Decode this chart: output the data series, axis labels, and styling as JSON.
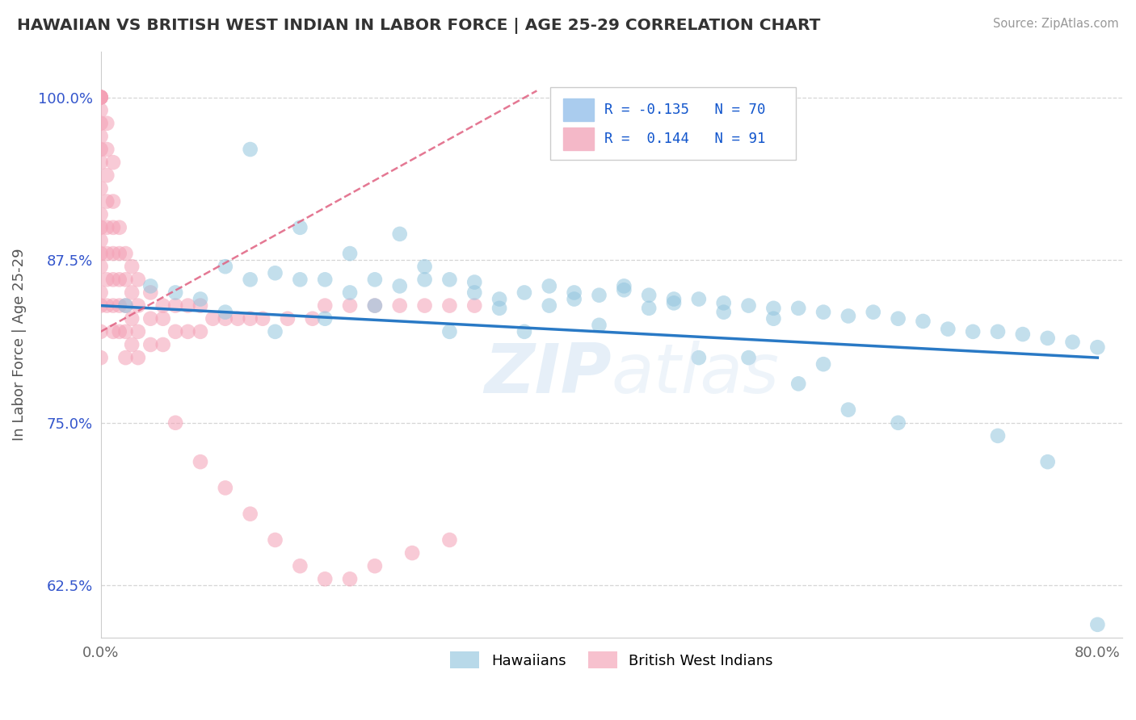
{
  "title": "HAWAIIAN VS BRITISH WEST INDIAN IN LABOR FORCE | AGE 25-29 CORRELATION CHART",
  "source": "Source: ZipAtlas.com",
  "ylabel": "In Labor Force | Age 25-29",
  "xlim": [
    0.0,
    0.82
  ],
  "ylim": [
    0.585,
    1.035
  ],
  "xticks": [
    0.0,
    0.2,
    0.4,
    0.6,
    0.8
  ],
  "xticklabels": [
    "0.0%",
    "",
    "",
    "",
    "80.0%"
  ],
  "yticks": [
    0.625,
    0.75,
    0.875,
    1.0
  ],
  "yticklabels": [
    "62.5%",
    "75.0%",
    "87.5%",
    "100.0%"
  ],
  "hawaiian_R": -0.135,
  "hawaiian_N": 70,
  "bwi_R": 0.144,
  "bwi_N": 91,
  "legend_label_1": "Hawaiians",
  "legend_label_2": "British West Indians",
  "watermark": "ZIPatlas",
  "blue_color": "#92c5de",
  "pink_color": "#f4a0b5",
  "blue_line_color": "#2979c5",
  "pink_line_color": "#e06080",
  "hawaiian_x": [
    0.02,
    0.04,
    0.06,
    0.08,
    0.1,
    0.12,
    0.14,
    0.16,
    0.18,
    0.2,
    0.22,
    0.24,
    0.26,
    0.28,
    0.3,
    0.32,
    0.34,
    0.36,
    0.38,
    0.4,
    0.42,
    0.44,
    0.46,
    0.48,
    0.5,
    0.52,
    0.54,
    0.56,
    0.58,
    0.6,
    0.62,
    0.64,
    0.66,
    0.68,
    0.7,
    0.72,
    0.74,
    0.76,
    0.78,
    0.8,
    0.14,
    0.18,
    0.22,
    0.28,
    0.32,
    0.36,
    0.4,
    0.44,
    0.5,
    0.54,
    0.12,
    0.16,
    0.2,
    0.24,
    0.3,
    0.38,
    0.42,
    0.46,
    0.52,
    0.58,
    0.1,
    0.26,
    0.34,
    0.48,
    0.56,
    0.6,
    0.64,
    0.72,
    0.76,
    0.8
  ],
  "hawaiian_y": [
    0.84,
    0.855,
    0.85,
    0.845,
    0.87,
    0.86,
    0.865,
    0.86,
    0.86,
    0.85,
    0.86,
    0.855,
    0.87,
    0.86,
    0.85,
    0.845,
    0.85,
    0.855,
    0.845,
    0.848,
    0.852,
    0.848,
    0.845,
    0.845,
    0.842,
    0.84,
    0.838,
    0.838,
    0.835,
    0.832,
    0.835,
    0.83,
    0.828,
    0.822,
    0.82,
    0.82,
    0.818,
    0.815,
    0.812,
    0.808,
    0.82,
    0.83,
    0.84,
    0.82,
    0.838,
    0.84,
    0.825,
    0.838,
    0.835,
    0.83,
    0.96,
    0.9,
    0.88,
    0.895,
    0.858,
    0.85,
    0.855,
    0.842,
    0.8,
    0.795,
    0.835,
    0.86,
    0.82,
    0.8,
    0.78,
    0.76,
    0.75,
    0.74,
    0.72,
    0.595
  ],
  "bwi_x": [
    0.0,
    0.0,
    0.0,
    0.0,
    0.0,
    0.0,
    0.0,
    0.0,
    0.0,
    0.0,
    0.0,
    0.0,
    0.0,
    0.0,
    0.0,
    0.0,
    0.0,
    0.0,
    0.0,
    0.0,
    0.005,
    0.005,
    0.005,
    0.005,
    0.005,
    0.005,
    0.005,
    0.005,
    0.01,
    0.01,
    0.01,
    0.01,
    0.01,
    0.01,
    0.01,
    0.015,
    0.015,
    0.015,
    0.015,
    0.015,
    0.02,
    0.02,
    0.02,
    0.02,
    0.02,
    0.025,
    0.025,
    0.025,
    0.025,
    0.03,
    0.03,
    0.03,
    0.03,
    0.04,
    0.04,
    0.04,
    0.05,
    0.05,
    0.05,
    0.06,
    0.06,
    0.07,
    0.07,
    0.08,
    0.08,
    0.09,
    0.1,
    0.11,
    0.12,
    0.13,
    0.15,
    0.17,
    0.18,
    0.2,
    0.22,
    0.24,
    0.26,
    0.28,
    0.3,
    0.06,
    0.08,
    0.1,
    0.12,
    0.14,
    0.16,
    0.18,
    0.2,
    0.22,
    0.25,
    0.28
  ],
  "bwi_y": [
    1.0,
    1.0,
    1.0,
    1.0,
    1.0,
    0.99,
    0.98,
    0.97,
    0.96,
    0.95,
    0.93,
    0.91,
    0.9,
    0.89,
    0.88,
    0.87,
    0.85,
    0.84,
    0.82,
    0.8,
    0.98,
    0.96,
    0.94,
    0.92,
    0.9,
    0.88,
    0.86,
    0.84,
    0.95,
    0.92,
    0.9,
    0.88,
    0.86,
    0.84,
    0.82,
    0.9,
    0.88,
    0.86,
    0.84,
    0.82,
    0.88,
    0.86,
    0.84,
    0.82,
    0.8,
    0.87,
    0.85,
    0.83,
    0.81,
    0.86,
    0.84,
    0.82,
    0.8,
    0.85,
    0.83,
    0.81,
    0.84,
    0.83,
    0.81,
    0.84,
    0.82,
    0.84,
    0.82,
    0.84,
    0.82,
    0.83,
    0.83,
    0.83,
    0.83,
    0.83,
    0.83,
    0.83,
    0.84,
    0.84,
    0.84,
    0.84,
    0.84,
    0.84,
    0.84,
    0.75,
    0.72,
    0.7,
    0.68,
    0.66,
    0.64,
    0.63,
    0.63,
    0.64,
    0.65,
    0.66
  ]
}
